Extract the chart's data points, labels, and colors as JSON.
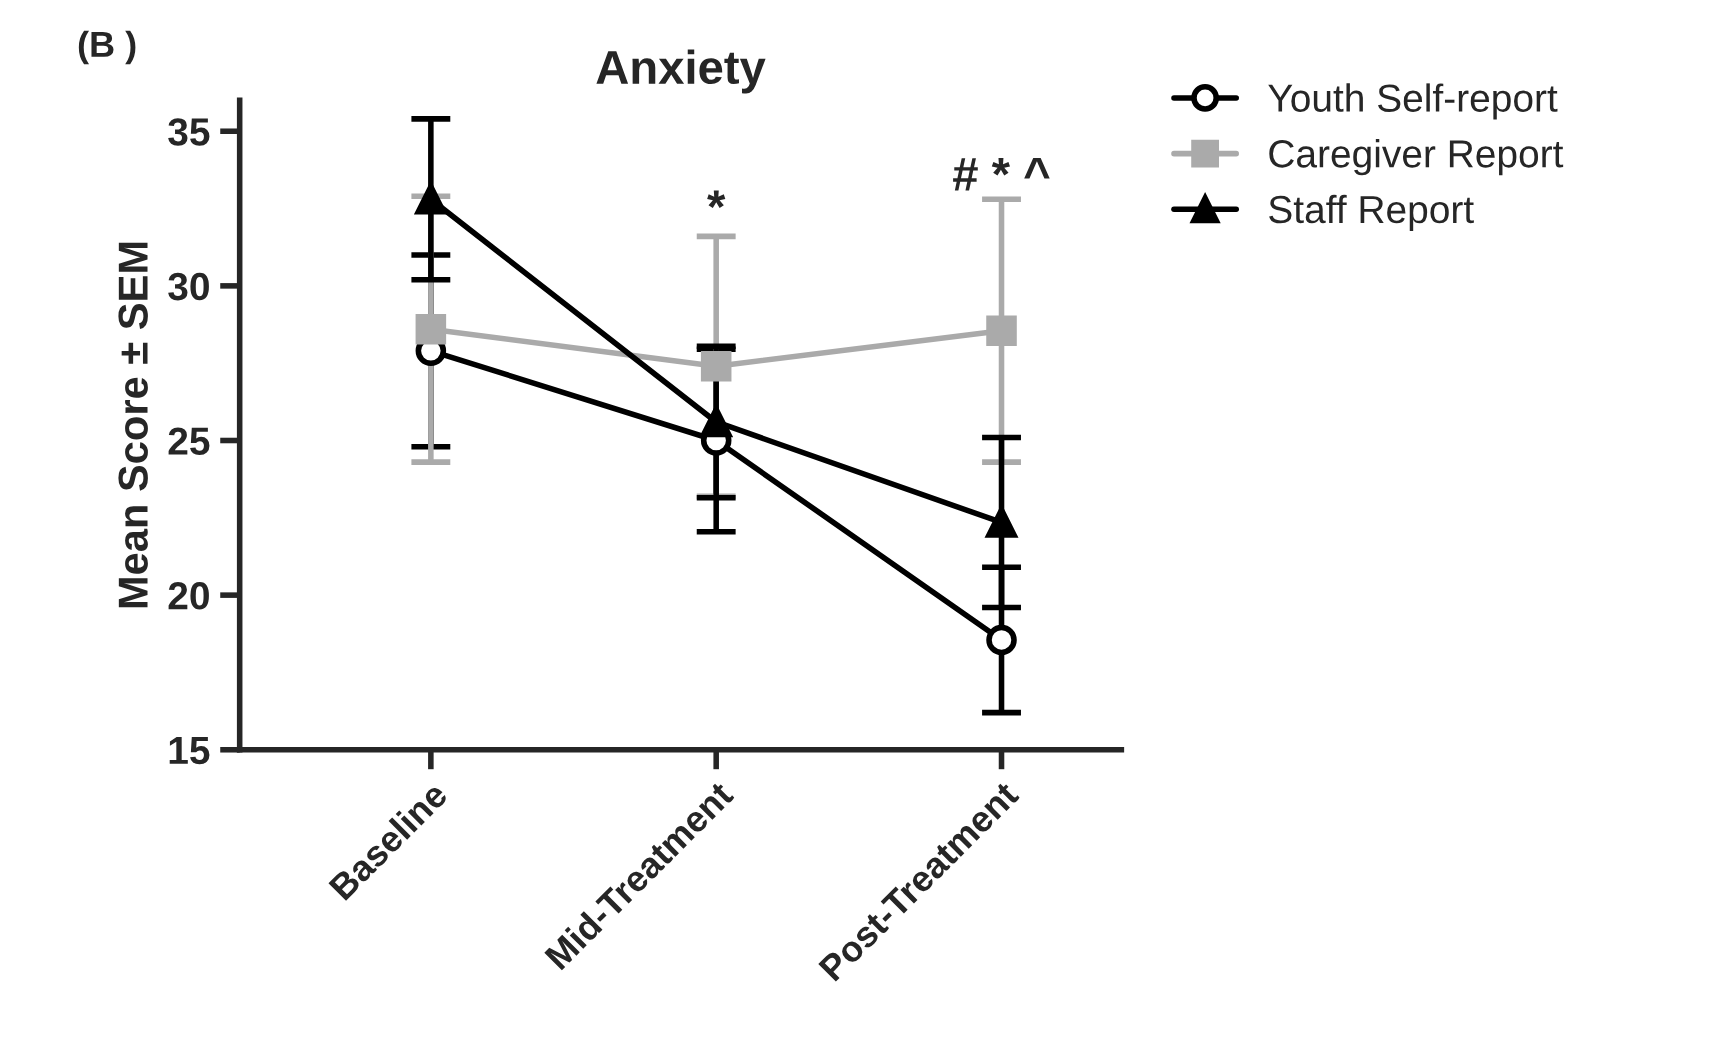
{
  "chart_data": {
    "type": "line",
    "title": "Anxiety",
    "ylabel": "Mean Score ± SEM",
    "categories": [
      "Baseline",
      "Mid-Treatment",
      "Post-Treatment"
    ],
    "series": [
      {
        "name": "Youth Self-report",
        "color": "#000000",
        "marker": "circle",
        "values": [
          27.9,
          25.0,
          18.55
        ],
        "errors": [
          3.1,
          2.95,
          2.35
        ]
      },
      {
        "name": "Caregiver Report",
        "color": "#aaaaaa",
        "marker": "square",
        "values": [
          28.6,
          27.4,
          28.55
        ],
        "errors": [
          4.3,
          4.2,
          4.25
        ]
      },
      {
        "name": "Staff Report",
        "color": "#000000",
        "marker": "triangle",
        "values": [
          32.8,
          25.6,
          22.35
        ],
        "errors": [
          2.6,
          2.45,
          2.75
        ]
      }
    ],
    "ylim": [
      15,
      36
    ],
    "yticks": [
      15,
      20,
      25,
      30,
      35
    ],
    "grid": false,
    "legend": "right",
    "annotations": [
      "(B )",
      "*",
      "# * ^"
    ]
  }
}
